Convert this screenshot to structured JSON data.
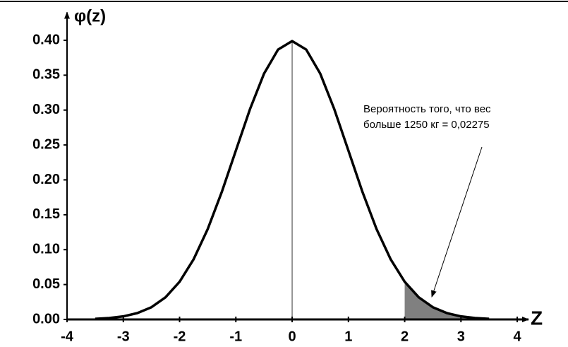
{
  "chart_data": {
    "type": "line",
    "y_label": "φ(z)",
    "x_label": "Z",
    "annotation": [
      "Вероятность того, что вес",
      "больше 1250 кг = 0,02275"
    ],
    "x": [
      -3.5,
      -3.25,
      -3,
      -2.75,
      -2.5,
      -2.25,
      -2,
      -1.75,
      -1.5,
      -1.25,
      -1,
      -0.75,
      -0.5,
      -0.25,
      0,
      0.25,
      0.5,
      0.75,
      1,
      1.25,
      1.5,
      1.75,
      2,
      2.25,
      2.5,
      2.75,
      3,
      3.25,
      3.5
    ],
    "series": [
      {
        "color": "#000000",
        "values": [
          0.0009,
          0.002,
          0.0044,
          0.0091,
          0.0175,
          0.0317,
          0.054,
          0.0863,
          0.1295,
          0.1826,
          0.242,
          0.3011,
          0.3521,
          0.3867,
          0.3989,
          0.3867,
          0.3521,
          0.3011,
          0.242,
          0.1826,
          0.1295,
          0.0863,
          0.054,
          0.0317,
          0.0175,
          0.0091,
          0.0044,
          0.002,
          0.0009
        ]
      }
    ],
    "shade_from": 2,
    "shade_color": "#808080",
    "xlim": [
      -4,
      4.2
    ],
    "ylim": [
      0,
      0.44
    ],
    "xticks": [
      -4,
      -3,
      -2,
      -1,
      0,
      1,
      2,
      3,
      4
    ],
    "yticks": [
      {
        "value": 0,
        "label": "0.00"
      },
      {
        "value": 0.05,
        "label": "0.05"
      },
      {
        "value": 0.1,
        "label": "0.10"
      },
      {
        "value": 0.15,
        "label": "0.15"
      },
      {
        "value": 0.2,
        "label": "0.20"
      },
      {
        "value": 0.25,
        "label": "0.25"
      },
      {
        "value": 0.3,
        "label": "0.30"
      },
      {
        "value": 0.35,
        "label": "0.35"
      },
      {
        "value": 0.4,
        "label": "0.40"
      }
    ]
  }
}
